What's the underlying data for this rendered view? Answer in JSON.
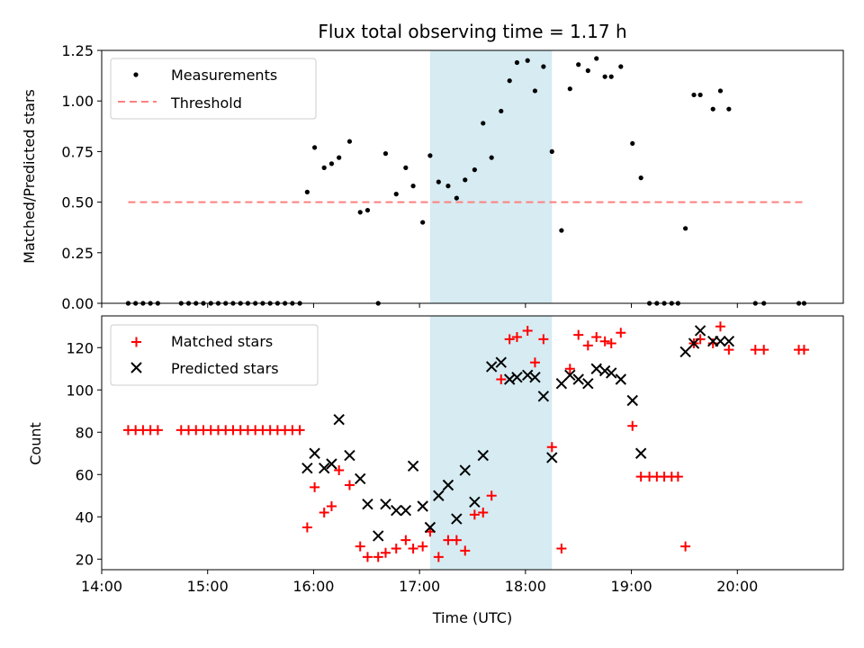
{
  "chart_data": [
    {
      "type": "scatter",
      "title": "Flux total observing time = 1.17 h",
      "xlabel": "",
      "ylabel": "Matched/Predicted stars",
      "xlim": [
        14.0,
        21.0
      ],
      "ylim": [
        0.0,
        1.25
      ],
      "yticks": [
        0.0,
        0.25,
        0.5,
        0.75,
        1.0,
        1.25
      ],
      "ytick_labels": [
        "0.00",
        "0.25",
        "0.50",
        "0.75",
        "1.00",
        "1.25"
      ],
      "highlight_span": [
        17.1,
        18.25
      ],
      "threshold": {
        "name": "Threshold",
        "y": 0.5,
        "x_start": 14.25,
        "x_end": 20.65,
        "color": "#ff7f7f"
      },
      "series": [
        {
          "name": "Measurements",
          "marker": "dot",
          "color": "#000000",
          "x": [
            14.25,
            14.32,
            14.39,
            14.46,
            14.53,
            14.75,
            14.82,
            14.89,
            14.96,
            15.03,
            15.1,
            15.17,
            15.24,
            15.31,
            15.38,
            15.45,
            15.52,
            15.59,
            15.66,
            15.73,
            15.8,
            15.87,
            15.94,
            16.01,
            16.1,
            16.17,
            16.24,
            16.34,
            16.44,
            16.51,
            16.61,
            16.68,
            16.78,
            16.87,
            16.94,
            17.03,
            17.1,
            17.18,
            17.27,
            17.35,
            17.43,
            17.52,
            17.6,
            17.68,
            17.77,
            17.85,
            17.92,
            18.02,
            18.09,
            18.17,
            18.25,
            18.34,
            18.42,
            18.5,
            18.59,
            18.67,
            18.75,
            18.81,
            18.9,
            19.01,
            19.09,
            19.17,
            19.24,
            19.31,
            19.38,
            19.44,
            19.51,
            19.59,
            19.65,
            19.77,
            19.84,
            19.92,
            20.17,
            20.25,
            20.58,
            20.63
          ],
          "y": [
            0,
            0,
            0,
            0,
            0,
            0,
            0,
            0,
            0,
            0,
            0,
            0,
            0,
            0,
            0,
            0,
            0,
            0,
            0,
            0,
            0,
            0,
            0.55,
            0.77,
            0.67,
            0.69,
            0.72,
            0.8,
            0.45,
            0.46,
            0,
            0.74,
            0.54,
            0.67,
            0.58,
            0.4,
            0.73,
            0.6,
            0.58,
            0.52,
            0.61,
            0.66,
            0.89,
            0.72,
            0.95,
            1.1,
            1.19,
            1.2,
            1.05,
            1.17,
            0.75,
            0.36,
            1.06,
            1.18,
            1.15,
            1.21,
            1.12,
            1.12,
            1.17,
            0.79,
            0.62,
            0,
            0,
            0,
            0,
            0,
            0.37,
            1.03,
            1.03,
            0.96,
            1.05,
            0.96,
            0,
            0,
            0,
            0
          ]
        }
      ],
      "legend": {
        "position": "upper left",
        "entries": [
          "Measurements",
          "Threshold"
        ]
      }
    },
    {
      "type": "scatter",
      "title": "",
      "xlabel": "Time (UTC)",
      "ylabel": "Count",
      "xlim": [
        14.0,
        21.0
      ],
      "ylim": [
        15,
        135
      ],
      "xticks": [
        14,
        15,
        16,
        17,
        18,
        19,
        20
      ],
      "xtick_labels": [
        "14:00",
        "15:00",
        "16:00",
        "17:00",
        "18:00",
        "19:00",
        "20:00"
      ],
      "yticks": [
        20,
        40,
        60,
        80,
        100,
        120
      ],
      "ytick_labels": [
        "20",
        "40",
        "60",
        "80",
        "100",
        "120"
      ],
      "highlight_span": [
        17.1,
        18.25
      ],
      "series": [
        {
          "name": "Matched stars",
          "marker": "plus",
          "color": "#ff0000",
          "x": [
            14.25,
            14.32,
            14.39,
            14.46,
            14.53,
            14.75,
            14.82,
            14.89,
            14.96,
            15.03,
            15.1,
            15.17,
            15.24,
            15.31,
            15.38,
            15.45,
            15.52,
            15.59,
            15.66,
            15.73,
            15.8,
            15.87,
            15.94,
            16.01,
            16.1,
            16.17,
            16.24,
            16.34,
            16.44,
            16.51,
            16.61,
            16.68,
            16.78,
            16.87,
            16.94,
            17.03,
            17.1,
            17.18,
            17.27,
            17.35,
            17.43,
            17.52,
            17.6,
            17.68,
            17.77,
            17.85,
            17.92,
            18.02,
            18.09,
            18.17,
            18.25,
            18.34,
            18.42,
            18.5,
            18.59,
            18.67,
            18.75,
            18.81,
            18.9,
            19.01,
            19.09,
            19.17,
            19.24,
            19.31,
            19.38,
            19.44,
            19.51,
            19.59,
            19.65,
            19.77,
            19.84,
            19.92,
            20.17,
            20.25,
            20.58,
            20.63
          ],
          "y": [
            81,
            81,
            81,
            81,
            81,
            81,
            81,
            81,
            81,
            81,
            81,
            81,
            81,
            81,
            81,
            81,
            81,
            81,
            81,
            81,
            81,
            81,
            35,
            54,
            42,
            45,
            62,
            55,
            26,
            21,
            21,
            23,
            25,
            29,
            25,
            26,
            33,
            21,
            29,
            29,
            24,
            41,
            42,
            50,
            105,
            124,
            125,
            128,
            113,
            124,
            73,
            25,
            110,
            126,
            121,
            125,
            123,
            122,
            127,
            83,
            59,
            59,
            59,
            59,
            59,
            59,
            26,
            122,
            124,
            122,
            130,
            119,
            119,
            119,
            119,
            119
          ]
        },
        {
          "name": "Predicted stars",
          "marker": "x",
          "color": "#000000",
          "x": [
            15.94,
            16.01,
            16.1,
            16.17,
            16.24,
            16.34,
            16.44,
            16.51,
            16.61,
            16.68,
            16.78,
            16.87,
            16.94,
            17.03,
            17.1,
            17.18,
            17.27,
            17.35,
            17.43,
            17.52,
            17.6,
            17.68,
            17.77,
            17.85,
            17.92,
            18.02,
            18.09,
            18.17,
            18.25,
            18.34,
            18.42,
            18.5,
            18.59,
            18.67,
            18.75,
            18.81,
            18.9,
            19.01,
            19.09,
            19.51,
            19.59,
            19.65,
            19.77,
            19.84,
            19.92
          ],
          "y": [
            63,
            70,
            63,
            65,
            86,
            69,
            58,
            46,
            31,
            46,
            43,
            43,
            64,
            45,
            35,
            50,
            55,
            39,
            62,
            47,
            69,
            111,
            113,
            105,
            106,
            107,
            106,
            97,
            68,
            103,
            107,
            105,
            103,
            110,
            109,
            108,
            105,
            95,
            70,
            118,
            122,
            128,
            123,
            123,
            123
          ]
        }
      ],
      "legend": {
        "position": "upper left",
        "entries": [
          "Matched stars",
          "Predicted stars"
        ]
      }
    }
  ]
}
